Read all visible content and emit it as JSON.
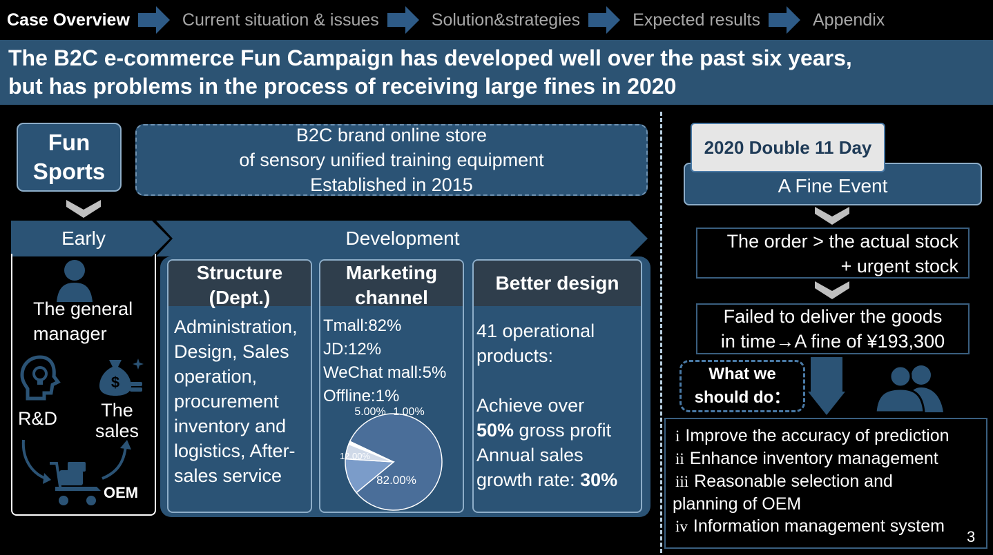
{
  "nav": {
    "items": [
      {
        "label": "Case Overview",
        "active": true
      },
      {
        "label": "Current situation & issues",
        "active": false
      },
      {
        "label": "Solution&strategies",
        "active": false
      },
      {
        "label": "Expected results",
        "active": false
      },
      {
        "label": "Appendix",
        "active": false
      }
    ]
  },
  "headline": {
    "line1": "The B2C e-commerce Fun Campaign has developed well over the past six years,",
    "line2": "but has problems in the process of receiving large fines in 2020"
  },
  "company": {
    "name_line1": "Fun",
    "name_line2": "Sports",
    "desc_line1": "B2C brand online store",
    "desc_line2": "of sensory unified training equipment",
    "desc_line3": "Established in 2015"
  },
  "early": {
    "label": "Early",
    "gm_line1": "The general",
    "gm_line2": "manager",
    "rd": "R&D",
    "sales_line1": "The",
    "sales_line2": "sales",
    "oem": "OEM"
  },
  "development": {
    "label": "Development",
    "structure": {
      "title_line1": "Structure",
      "title_line2": "(Dept.)",
      "lines": [
        "Administration,",
        "Design, Sales",
        "operation,",
        "procurement",
        "inventory and",
        "logistics, After-",
        "sales service"
      ]
    },
    "marketing": {
      "title_line1": "Marketing",
      "title_line2": "channel",
      "lines": [
        "Tmall:82%",
        "JD:12%",
        "WeChat mall:5%",
        "Offline:1%"
      ]
    },
    "design": {
      "title": "Better design",
      "line1": "41 operational",
      "line2": "products:",
      "line3": "Achieve over",
      "line4_bold": "50%",
      "line4_rest": " gross profit",
      "line5": "Annual sales",
      "line6_text": "growth rate: ",
      "line6_bold": "30%"
    }
  },
  "chart_data": {
    "type": "pie",
    "slices": [
      {
        "label": "82.00%",
        "value": 82,
        "color": "#4a6e99"
      },
      {
        "label": "12.00%",
        "value": 12,
        "color": "#7b9cc9"
      },
      {
        "label": "5.00%",
        "value": 5,
        "color": "#cfd9e8"
      },
      {
        "label": "1.00%",
        "value": 1,
        "color": "#ffffff"
      }
    ]
  },
  "event": {
    "tab": "2020 Double 11 Day",
    "title": "A Fine Event",
    "step1_line1": "The order > the actual stock",
    "step1_line2": "+ urgent stock",
    "step2_line1": "Failed to deliver the goods",
    "step2_line2": "in time→A fine of ¥193,300",
    "question_line1": "What we",
    "question_line2": "should do：",
    "actions": [
      {
        "num": "i",
        "text": "Improve the accuracy of prediction"
      },
      {
        "num": "ii",
        "text": "Enhance inventory management"
      },
      {
        "num": "iii",
        "text": "Reasonable selection and"
      },
      {
        "num": "",
        "text": "planning of OEM"
      },
      {
        "num": "iv",
        "text": "Information management system"
      }
    ]
  },
  "page_number": "3"
}
